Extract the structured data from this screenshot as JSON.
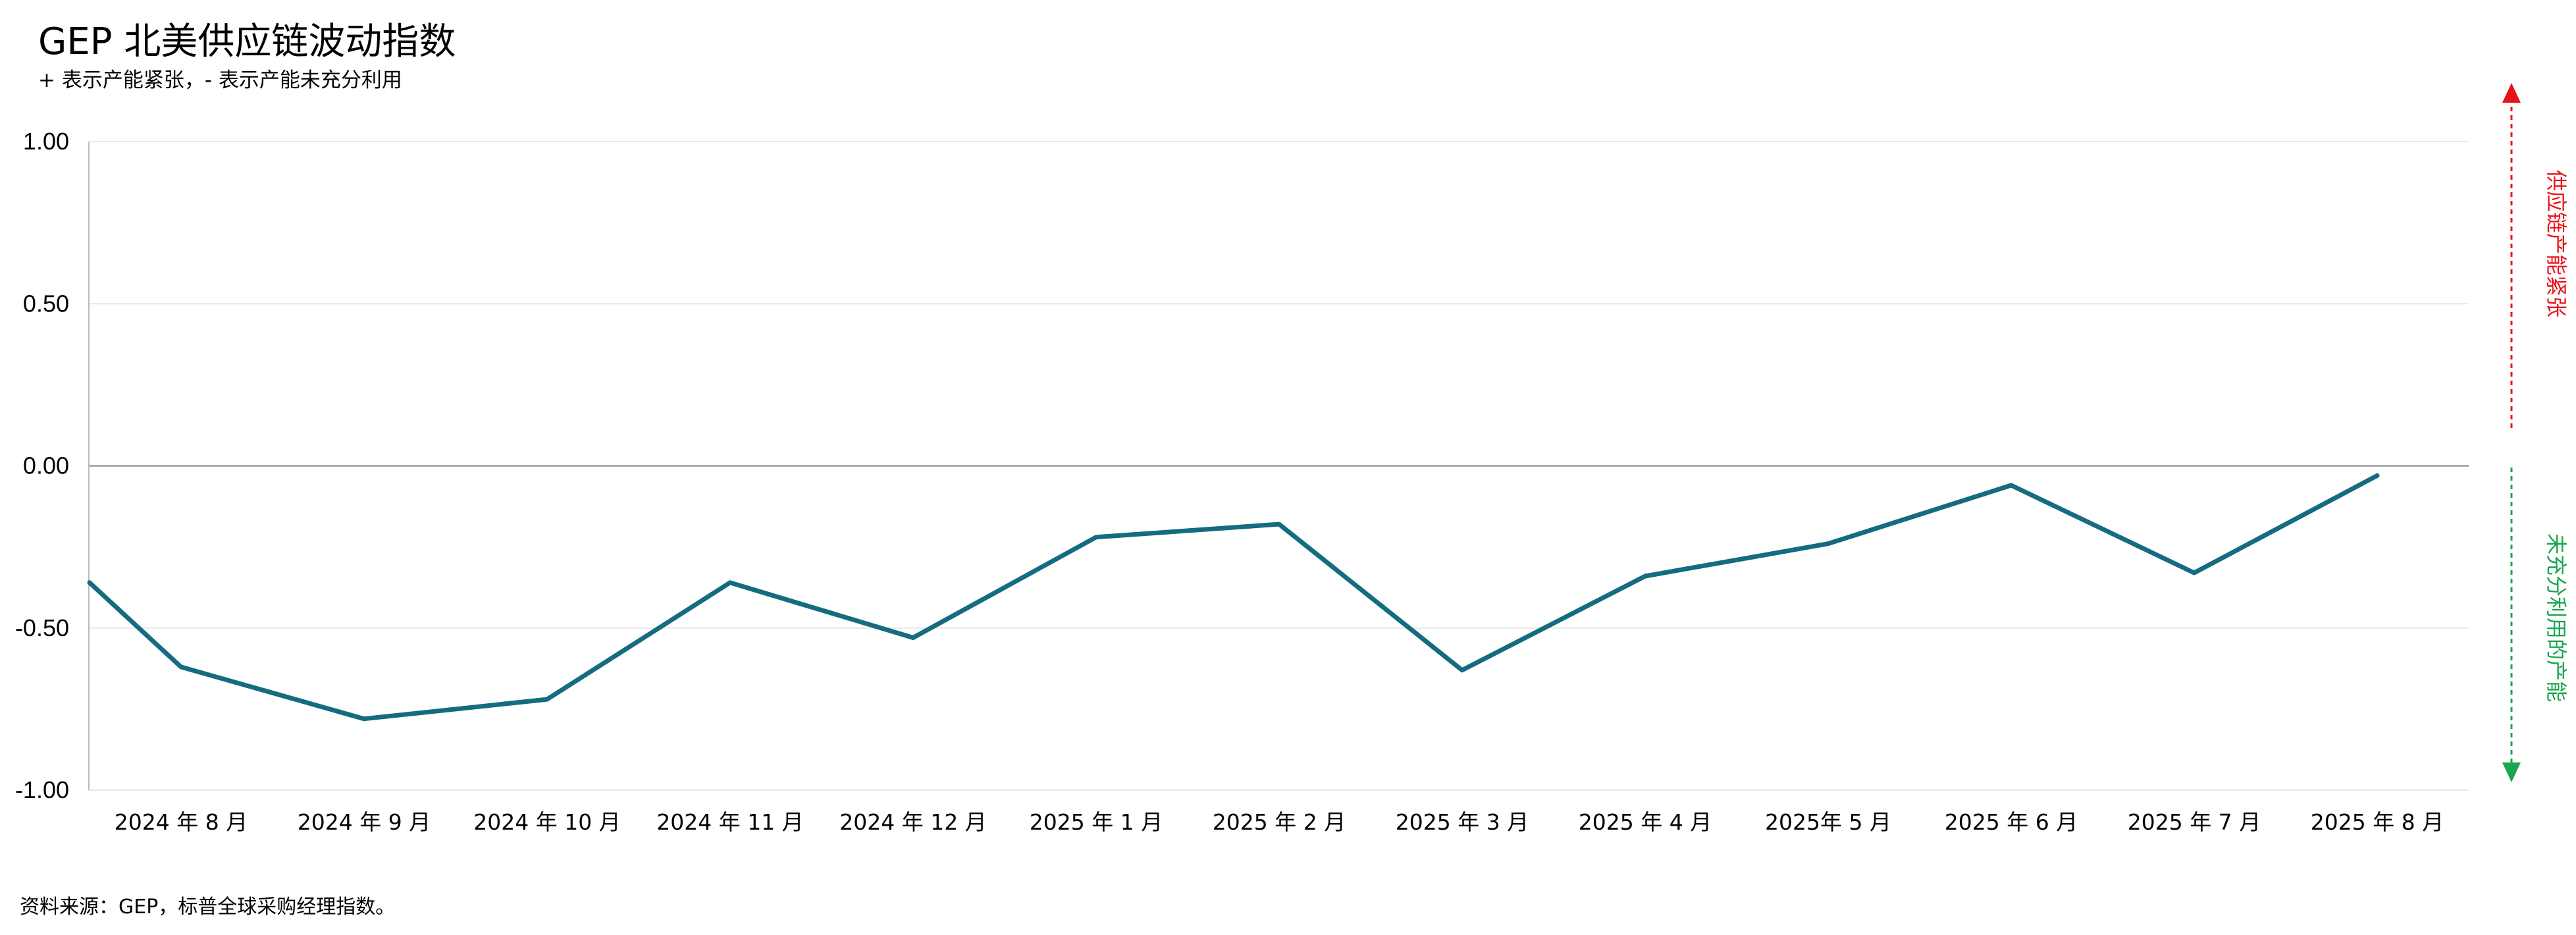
{
  "title": "GEP 北美供应链波动指数",
  "subtitle": "+ 表示产能紧张，- 表示产能未充分利用",
  "source": "资料来源：GEP，标普全球采购经理指数。",
  "colors": {
    "line": "#156b80",
    "up": "#e8141b",
    "down": "#1aa64f",
    "grid": "#e8e8e8",
    "zero": "#999999"
  },
  "side_labels": {
    "up": "供应链产能紧张",
    "down": "未充分利用的产能"
  },
  "chart_data": {
    "type": "line",
    "title": "GEP 北美供应链波动指数",
    "subtitle": "+ 表示产能紧张，- 表示产能未充分利用",
    "xlabel": "",
    "ylabel": "",
    "ylim": [
      -1.0,
      1.0
    ],
    "yticks": [
      "1.00",
      "0.50",
      "0.00",
      "-0.50",
      "-1.00"
    ],
    "categories": [
      "2024 年 8 月",
      "2024 年 9 月",
      "2024 年 10 月",
      "2024 年 11 月",
      "2024 年 12 月",
      "2025 年 1 月",
      "2025 年 2 月",
      "2025 年 3 月",
      "2025 年 4 月",
      "2025年 5 月",
      "2025 年 6 月",
      "2025 年 7 月",
      "2025 年 8 月"
    ],
    "points": [
      {
        "x": 7.5,
        "y": -0.36
      },
      {
        "x": 8.0,
        "y": -0.62
      },
      {
        "x": 9.0,
        "y": -0.78
      },
      {
        "x": 10.0,
        "y": -0.72
      },
      {
        "x": 11.0,
        "y": -0.36
      },
      {
        "x": 12.0,
        "y": -0.53
      },
      {
        "x": 13.0,
        "y": -0.22
      },
      {
        "x": 14.0,
        "y": -0.18
      },
      {
        "x": 15.0,
        "y": -0.63
      },
      {
        "x": 16.0,
        "y": -0.34
      },
      {
        "x": 17.0,
        "y": -0.24
      },
      {
        "x": 18.0,
        "y": -0.06
      },
      {
        "x": 19.0,
        "y": -0.33
      },
      {
        "x": 20.0,
        "y": -0.03
      }
    ],
    "grid": true,
    "legend": "none"
  }
}
